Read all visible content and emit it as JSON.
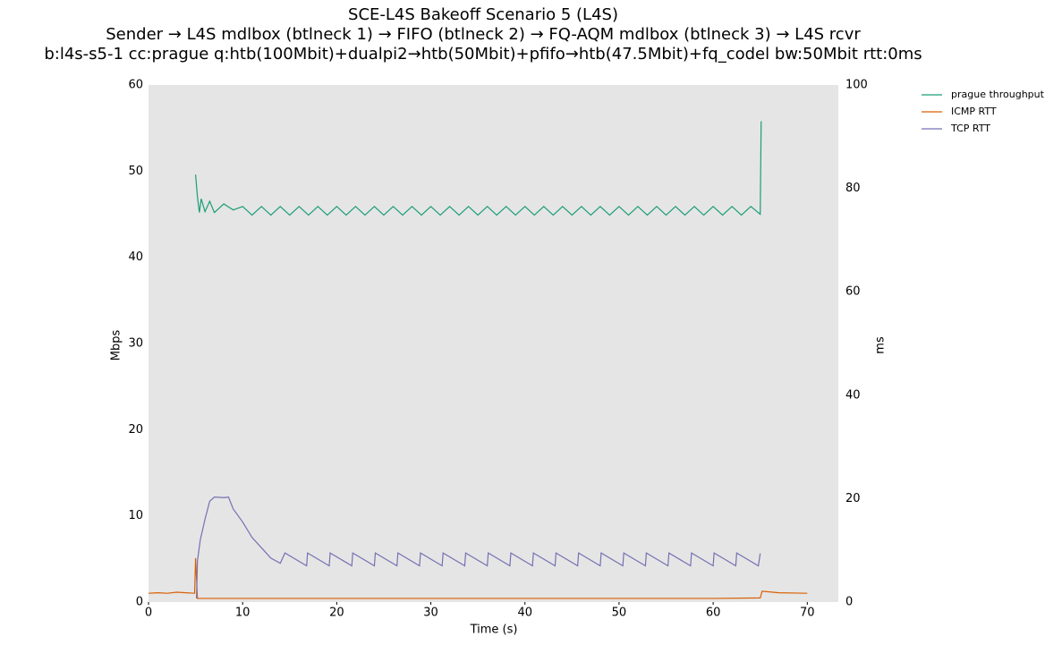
{
  "chart_data": {
    "type": "line",
    "title": [
      "SCE-L4S Bakeoff Scenario 5 (L4S)",
      "Sender → L4S mdlbox (btlneck 1) → FIFO (btlneck 2) → FQ-AQM mdlbox (btlneck 3) → L4S rcvr",
      "b:l4s-s5-1 cc:prague q:htb(100Mbit)+dualpi2→htb(50Mbit)+pfifo→htb(47.5Mbit)+fq_codel bw:50Mbit rtt:0ms"
    ],
    "x_label": "Time (s)",
    "y_label": "Mbps",
    "y2_label": "ms",
    "xlim": [
      0,
      73.3
    ],
    "xticks": [
      0,
      10,
      20,
      30,
      40,
      50,
      60,
      70
    ],
    "ylim": [
      0,
      60
    ],
    "yticks": [
      0,
      10,
      20,
      30,
      40,
      50,
      60
    ],
    "y2lim": [
      0,
      100
    ],
    "y2ticks": [
      0,
      20,
      40,
      60,
      80,
      100
    ],
    "grid": false,
    "legend": "outside-upper-right",
    "series": [
      {
        "name": "prague throughput",
        "color": "#1b9e77",
        "axis": "y",
        "x": [
          5,
          5.2,
          5.4,
          5.6,
          6,
          6.5,
          7,
          8,
          9,
          10,
          11,
          12,
          13,
          14,
          15,
          16,
          17,
          18,
          19,
          20,
          21,
          22,
          23,
          24,
          25,
          26,
          27,
          28,
          29,
          30,
          31,
          32,
          33,
          34,
          35,
          36,
          37,
          38,
          39,
          40,
          41,
          42,
          43,
          44,
          45,
          46,
          47,
          48,
          49,
          50,
          51,
          52,
          53,
          54,
          55,
          56,
          57,
          58,
          59,
          60,
          61,
          62,
          63,
          64,
          65,
          65.1
        ],
        "values": [
          49.6,
          47,
          45.2,
          46.8,
          45.3,
          46.5,
          45.2,
          46.2,
          45.5,
          45.9,
          44.9,
          45.9,
          44.9,
          45.9,
          44.9,
          45.9,
          44.9,
          45.9,
          44.9,
          45.9,
          44.9,
          45.9,
          44.9,
          45.9,
          44.9,
          45.9,
          44.9,
          45.9,
          44.9,
          45.9,
          44.9,
          45.9,
          44.9,
          45.9,
          44.9,
          45.9,
          44.9,
          45.9,
          44.9,
          45.9,
          44.9,
          45.9,
          44.9,
          45.9,
          44.9,
          45.9,
          44.9,
          45.9,
          44.9,
          45.9,
          44.9,
          45.9,
          44.9,
          45.9,
          44.9,
          45.9,
          44.9,
          45.9,
          44.9,
          45.9,
          44.9,
          45.9,
          44.9,
          45.9,
          45.0,
          55.8
        ]
      },
      {
        "name": "ICMP RTT",
        "color": "#d95f02",
        "axis": "y2",
        "x": [
          0,
          1,
          2,
          3,
          4,
          4.9,
          5.0,
          5.2,
          10,
          20,
          30,
          40,
          50,
          60,
          65,
          65.2,
          67,
          70
        ],
        "values": [
          1.7,
          1.8,
          1.7,
          1.9,
          1.8,
          1.7,
          8.5,
          0.7,
          0.7,
          0.7,
          0.7,
          0.7,
          0.7,
          0.7,
          0.8,
          2.1,
          1.8,
          1.7
        ]
      },
      {
        "name": "TCP RTT",
        "color": "#7570b3",
        "axis": "y2",
        "x": [
          5.1,
          5.2,
          5.5,
          6,
          6.5,
          7,
          8,
          8.5,
          9,
          10,
          11,
          12,
          13,
          14,
          14.5,
          16.8,
          16.9,
          19.2,
          19.3,
          21.6,
          21.7,
          24.0,
          24.1,
          26.4,
          26.5,
          28.8,
          28.9,
          31.2,
          31.3,
          33.6,
          33.7,
          36.0,
          36.1,
          38.4,
          38.5,
          40.8,
          40.9,
          43.2,
          43.3,
          45.6,
          45.7,
          48.0,
          48.1,
          50.4,
          50.5,
          52.8,
          52.9,
          55.2,
          55.3,
          57.6,
          57.7,
          60.0,
          60.1,
          62.4,
          62.5,
          64.8,
          65
        ],
        "values": [
          0.7,
          8,
          12,
          16,
          19.5,
          20.3,
          20.2,
          20.3,
          18,
          15.5,
          12.5,
          10.5,
          8.5,
          7.5,
          9.5,
          7.0,
          9.5,
          7.0,
          9.5,
          7.0,
          9.5,
          7.0,
          9.5,
          7.0,
          9.5,
          7.0,
          9.5,
          7.0,
          9.5,
          7.0,
          9.5,
          7.0,
          9.5,
          7.0,
          9.5,
          7.0,
          9.5,
          7.0,
          9.5,
          7.0,
          9.5,
          7.0,
          9.5,
          7.0,
          9.5,
          7.0,
          9.5,
          7.0,
          9.5,
          7.0,
          9.5,
          7.0,
          9.5,
          7.0,
          9.5,
          7.0,
          9.4
        ]
      }
    ]
  }
}
